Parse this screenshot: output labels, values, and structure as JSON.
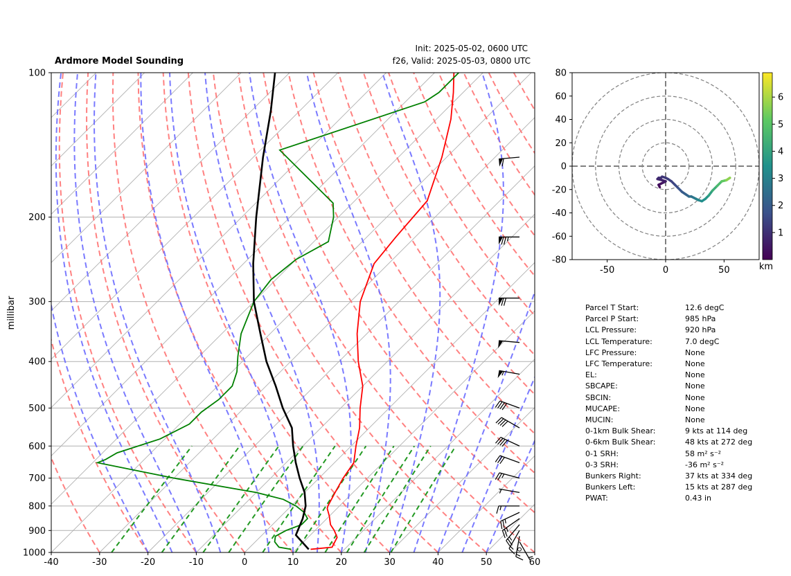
{
  "title": "Ardmore Model Sounding",
  "init": "Init: 2025-05-02, 0600 UTC",
  "valid": "f26, Valid: 2025-05-03, 0800 UTC",
  "chart_data": [
    {
      "type": "line",
      "subtype": "skew-t log-p",
      "ylabel": "millibar",
      "y_scale": "log",
      "xlim": [
        -40,
        60
      ],
      "ylim": [
        1000,
        100
      ],
      "x_ticks": [
        "-40",
        "-30",
        "-20",
        "-10",
        "0",
        "10",
        "20",
        "30",
        "40",
        "50",
        "60"
      ],
      "y_ticks": [
        "100",
        "200",
        "300",
        "400",
        "500",
        "600",
        "700",
        "800",
        "900",
        "1000"
      ],
      "colors": {
        "temperature": "#ff0000",
        "dewpoint": "#008000",
        "parcel": "#000000",
        "dry_adiabat": "#ff6b6b",
        "moist_adiabat": "#6b6bff",
        "mixing_ratio": "#229922"
      },
      "series": [
        {
          "key": "temperature",
          "pressure": [
            985,
            975,
            930,
            900,
            875,
            840,
            810,
            800,
            750,
            700,
            650,
            600,
            550,
            500,
            450,
            400,
            350,
            300,
            250,
            220,
            185,
            150,
            125,
            110,
            100
          ],
          "values": [
            13,
            17,
            16,
            14,
            12,
            10,
            8,
            7.6,
            6.3,
            5,
            4,
            1,
            -2,
            -6,
            -10,
            -16,
            -22,
            -28,
            -33,
            -34,
            -35,
            -41,
            -47,
            -52,
            -56
          ]
        },
        {
          "key": "dewpoint",
          "pressure": [
            985,
            975,
            950,
            925,
            900,
            875,
            850,
            825,
            800,
            775,
            750,
            700,
            650,
            640,
            620,
            580,
            540,
            510,
            480,
            450,
            420,
            390,
            350,
            300,
            270,
            245,
            225,
            200,
            187,
            145,
            115,
            110,
            100
          ],
          "values": [
            9,
            6,
            4,
            3,
            4,
            6,
            6,
            4,
            1,
            -3,
            -10,
            -30,
            -49,
            -48,
            -47,
            -41,
            -38,
            -38,
            -37,
            -37,
            -39,
            -42,
            -46,
            -50,
            -51,
            -50,
            -47,
            -51,
            -54,
            -76,
            -56,
            -55,
            -55
          ]
        },
        {
          "key": "parcel",
          "pressure": [
            985,
            920,
            850,
            800,
            750,
            700,
            650,
            600,
            550,
            500,
            450,
            400,
            350,
            300,
            250,
            200,
            150,
            120,
            100
          ],
          "values": [
            12.6,
            7,
            5,
            3,
            0,
            -4,
            -8,
            -12,
            -16,
            -22,
            -28,
            -35,
            -42,
            -50,
            -58,
            -67,
            -78,
            -86,
            -93
          ]
        }
      ],
      "wind_barbs": [
        {
          "p": 985,
          "speed": 0,
          "dir": 0
        },
        {
          "p": 950,
          "speed": 5,
          "dir": 150
        },
        {
          "p": 925,
          "speed": 15,
          "dir": 190
        },
        {
          "p": 900,
          "speed": 15,
          "dir": 210
        },
        {
          "p": 875,
          "speed": 25,
          "dir": 220
        },
        {
          "p": 850,
          "speed": 25,
          "dir": 235
        },
        {
          "p": 825,
          "speed": 25,
          "dir": 245
        },
        {
          "p": 800,
          "speed": 15,
          "dir": 270
        },
        {
          "p": 750,
          "speed": 5,
          "dir": 280
        },
        {
          "p": 700,
          "speed": 25,
          "dir": 285
        },
        {
          "p": 650,
          "speed": 30,
          "dir": 290
        },
        {
          "p": 600,
          "speed": 40,
          "dir": 295
        },
        {
          "p": 550,
          "speed": 40,
          "dir": 300
        },
        {
          "p": 500,
          "speed": 40,
          "dir": 290
        },
        {
          "p": 425,
          "speed": 55,
          "dir": 280
        },
        {
          "p": 365,
          "speed": 50,
          "dir": 275
        },
        {
          "p": 295,
          "speed": 70,
          "dir": 270
        },
        {
          "p": 220,
          "speed": 75,
          "dir": 270
        },
        {
          "p": 150,
          "speed": 60,
          "dir": 265
        }
      ]
    },
    {
      "type": "line",
      "subtype": "hodograph",
      "xlim": [
        -80,
        80
      ],
      "ylim": [
        -80,
        80
      ],
      "x_ticks": [
        "-50",
        "0",
        "50"
      ],
      "y_ticks": [
        "80",
        "60",
        "40",
        "20",
        "0",
        "-20",
        "-40",
        "-60",
        "-80"
      ],
      "colorbar_label": "km",
      "colorbar_ticks": [
        "6",
        "5",
        "4",
        "3",
        "2",
        "1"
      ],
      "colorbar_range": [
        0,
        6.9
      ],
      "u": [
        -5,
        -6,
        -2,
        0,
        -3,
        -7,
        -6,
        -4,
        -3,
        0,
        2,
        5,
        8,
        11,
        14,
        17,
        20,
        22,
        24,
        26,
        28,
        31,
        34,
        37,
        40,
        44,
        48,
        52,
        55
      ],
      "v": [
        -18,
        -16,
        -14,
        -13,
        -12,
        -11,
        -10,
        -10,
        -9,
        -10,
        -11,
        -13,
        -16,
        -19,
        -22,
        -24,
        -26,
        -26,
        -27,
        -28,
        -29,
        -30,
        -28,
        -25,
        -21,
        -17,
        -13,
        -12,
        -10
      ],
      "heights_km": [
        0.1,
        0.3,
        0.5,
        0.6,
        0.7,
        0.8,
        0.9,
        1.0,
        1.1,
        1.2,
        1.3,
        1.4,
        1.6,
        1.8,
        2.0,
        2.2,
        2.4,
        2.6,
        2.8,
        3.0,
        3.2,
        3.4,
        3.6,
        3.9,
        4.3,
        4.7,
        5.2,
        5.7,
        6.2
      ]
    }
  ],
  "stats": [
    {
      "label": "Parcel T Start:",
      "value": "12.6 degC"
    },
    {
      "label": "Parcel P Start:",
      "value": "985 hPa"
    },
    {
      "label": "LCL Pressure:",
      "value": "920 hPa"
    },
    {
      "label": "LCL Temperature:",
      "value": "7.0 degC"
    },
    {
      "label": "LFC Pressure:",
      "value": "None"
    },
    {
      "label": "LFC Temperature:",
      "value": "None"
    },
    {
      "label": "EL:",
      "value": "None"
    },
    {
      "label": "SBCAPE:",
      "value": "None"
    },
    {
      "label": "SBCIN:",
      "value": "None"
    },
    {
      "label": "MUCAPE:",
      "value": "None"
    },
    {
      "label": "MUCIN:",
      "value": "None"
    },
    {
      "label": "0-1km Bulk Shear:",
      "value": "9 kts at 114 deg"
    },
    {
      "label": "0-6km Bulk Shear:",
      "value": "48 kts at 272 deg"
    },
    {
      "label": "0-1 SRH:",
      "value": "58 m² s⁻²"
    },
    {
      "label": "0-3 SRH:",
      "value": "-36 m² s⁻²"
    },
    {
      "label": "Bunkers Right:",
      "value": "37 kts at 334 deg"
    },
    {
      "label": "Bunkers Left:",
      "value": "15 kts at 287 deg"
    },
    {
      "label": "PWAT:",
      "value": "0.43 in"
    }
  ]
}
